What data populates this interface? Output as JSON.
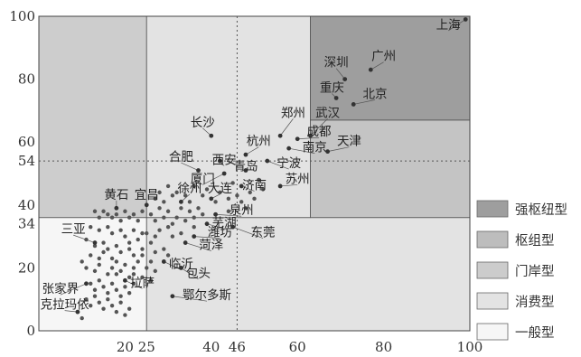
{
  "chart_data": {
    "type": "scatter",
    "title": "",
    "xlabel": "",
    "ylabel": "",
    "xlim": [
      0,
      100
    ],
    "ylim": [
      0,
      100
    ],
    "x_ticks": [
      "20",
      "25",
      "40",
      "46",
      "60",
      "80",
      "100"
    ],
    "x_tick_values": [
      20,
      25,
      40,
      46,
      60,
      80,
      100
    ],
    "y_ticks": [
      "0",
      "20",
      "34",
      "40",
      "54",
      "60",
      "80",
      "100"
    ],
    "y_tick_values": [
      0,
      20,
      34,
      40,
      54,
      60,
      80,
      100
    ],
    "threshold_lines": {
      "x": 46,
      "y": 54
    },
    "regions": [
      {
        "name": "一般型",
        "color": "#f6f6f6",
        "x": [
          0,
          25
        ],
        "y": [
          0,
          36
        ]
      },
      {
        "name": "消费型",
        "color": "#e3e3e3",
        "x": [
          25,
          100
        ],
        "y": [
          0,
          36
        ]
      },
      {
        "name": "门岸型",
        "color": "#cdcdcd",
        "x": [
          0,
          25
        ],
        "y": [
          36,
          100
        ]
      },
      {
        "name": "消费型",
        "color": "#e3e3e3",
        "x": [
          25,
          63
        ],
        "y": [
          36,
          100
        ]
      },
      {
        "name": "枢组型",
        "color": "#c4c4c4",
        "x": [
          63,
          100
        ],
        "y": [
          36,
          67
        ]
      },
      {
        "name": "强枢纽型",
        "color": "#9e9e9e",
        "x": [
          63,
          100
        ],
        "y": [
          67,
          100
        ]
      }
    ],
    "legend": {
      "placement": "right",
      "entries": [
        {
          "label": "强枢纽型",
          "color": "#9e9e9e"
        },
        {
          "label": "枢组型",
          "color": "#bdbdbd"
        },
        {
          "label": "门岸型",
          "color": "#cccccc"
        },
        {
          "label": "消费型",
          "color": "#e3e3e3"
        },
        {
          "label": "一般型",
          "color": "#f6f6f6"
        }
      ]
    },
    "points": [
      {
        "label": "上海",
        "x": 99,
        "y": 99,
        "lx": 95,
        "ly": 96
      },
      {
        "label": "广州",
        "x": 77,
        "y": 83,
        "lx": 80,
        "ly": 86
      },
      {
        "label": "深圳",
        "x": 71,
        "y": 80,
        "lx": 69,
        "ly": 84
      },
      {
        "label": "北京",
        "x": 73,
        "y": 72,
        "lx": 78,
        "ly": 74
      },
      {
        "label": "重庆",
        "x": 69,
        "y": 74,
        "lx": 68,
        "ly": 76
      },
      {
        "label": "郑州",
        "x": 56,
        "y": 62,
        "lx": 59,
        "ly": 68
      },
      {
        "label": "武汉",
        "x": 63,
        "y": 62,
        "lx": 67,
        "ly": 68
      },
      {
        "label": "成都",
        "x": 60,
        "y": 61,
        "lx": 65,
        "ly": 62
      },
      {
        "label": "南京",
        "x": 58,
        "y": 58,
        "lx": 64,
        "ly": 57
      },
      {
        "label": "天津",
        "x": 67,
        "y": 57,
        "lx": 72,
        "ly": 59
      },
      {
        "label": "长沙",
        "x": 40,
        "y": 62,
        "lx": 38,
        "ly": 65
      },
      {
        "label": "杭州",
        "x": 48,
        "y": 56,
        "lx": 51,
        "ly": 59
      },
      {
        "label": "西安",
        "x": 42,
        "y": 54,
        "lx": 43,
        "ly": 53
      },
      {
        "label": "合肥",
        "x": 37,
        "y": 51,
        "lx": 33,
        "ly": 54
      },
      {
        "label": "宁波",
        "x": 53,
        "y": 54,
        "lx": 58,
        "ly": 52
      },
      {
        "label": "青岛",
        "x": 48,
        "y": 51,
        "lx": 48,
        "ly": 51
      },
      {
        "label": "厦门",
        "x": 43,
        "y": 50,
        "lx": 38,
        "ly": 47
      },
      {
        "label": "济南",
        "x": 47,
        "y": 46,
        "lx": 50,
        "ly": 45
      },
      {
        "label": "苏州",
        "x": 56,
        "y": 46,
        "lx": 60,
        "ly": 47
      },
      {
        "label": "徐州",
        "x": 33,
        "y": 41,
        "lx": 35,
        "ly": 44
      },
      {
        "label": "大连",
        "x": 40,
        "y": 42,
        "lx": 42,
        "ly": 44
      },
      {
        "label": "黄石",
        "x": 18,
        "y": 39,
        "lx": 18,
        "ly": 42
      },
      {
        "label": "宜昌",
        "x": 25,
        "y": 40,
        "lx": 25,
        "ly": 42
      },
      {
        "label": "泉州",
        "x": 41,
        "y": 37,
        "lx": 47,
        "ly": 37
      },
      {
        "label": "芜湖",
        "x": 39,
        "y": 34,
        "lx": 43,
        "ly": 33
      },
      {
        "label": "东莞",
        "x": 45,
        "y": 33,
        "lx": 52,
        "ly": 30
      },
      {
        "label": "潍坊",
        "x": 36,
        "y": 30,
        "lx": 42,
        "ly": 30
      },
      {
        "label": "三亚",
        "x": 13,
        "y": 28,
        "lx": 8,
        "ly": 31
      },
      {
        "label": "菏泽",
        "x": 34,
        "y": 28,
        "lx": 40,
        "ly": 26
      },
      {
        "label": "临沂",
        "x": 29,
        "y": 22,
        "lx": 33,
        "ly": 20
      },
      {
        "label": "包头",
        "x": 33,
        "y": 20,
        "lx": 37,
        "ly": 17
      },
      {
        "label": "拉萨",
        "x": 20,
        "y": 16,
        "lx": 24,
        "ly": 14
      },
      {
        "label": "鄂尔多斯",
        "x": 31,
        "y": 11,
        "lx": 39,
        "ly": 10
      },
      {
        "label": "张家界",
        "x": 11,
        "y": 15,
        "lx": 5,
        "ly": 12
      },
      {
        "label": "克拉玛依",
        "x": 9,
        "y": 6,
        "lx": 6,
        "ly": 7
      }
    ],
    "unlabeled_points": [
      [
        13,
        38
      ],
      [
        14,
        36
      ],
      [
        15,
        38
      ],
      [
        16,
        37
      ],
      [
        17,
        36
      ],
      [
        18,
        37
      ],
      [
        19,
        35
      ],
      [
        20,
        38
      ],
      [
        21,
        36
      ],
      [
        22,
        37
      ],
      [
        23,
        35
      ],
      [
        24,
        38
      ],
      [
        26,
        37
      ],
      [
        27,
        35
      ],
      [
        28,
        39
      ],
      [
        29,
        36
      ],
      [
        30,
        38
      ],
      [
        31,
        34
      ],
      [
        32,
        36
      ],
      [
        33,
        39
      ],
      [
        34,
        35
      ],
      [
        35,
        38
      ],
      [
        36,
        36
      ],
      [
        37,
        39
      ],
      [
        38,
        37
      ],
      [
        27,
        42
      ],
      [
        28,
        44
      ],
      [
        29,
        41
      ],
      [
        30,
        46
      ],
      [
        31,
        43
      ],
      [
        32,
        44
      ],
      [
        34,
        43
      ],
      [
        35,
        41
      ],
      [
        36,
        46
      ],
      [
        38,
        43
      ],
      [
        39,
        45
      ],
      [
        41,
        41
      ],
      [
        42,
        44
      ],
      [
        44,
        42
      ],
      [
        45,
        47
      ],
      [
        46,
        43
      ],
      [
        47,
        41
      ],
      [
        49,
        44
      ],
      [
        50,
        42
      ],
      [
        51,
        48
      ],
      [
        52,
        45
      ],
      [
        44,
        38
      ],
      [
        48,
        39
      ],
      [
        36,
        33
      ],
      [
        33,
        31
      ],
      [
        31,
        30
      ],
      [
        30,
        33
      ],
      [
        28,
        32
      ],
      [
        27,
        30
      ],
      [
        26,
        28
      ],
      [
        24,
        31
      ],
      [
        12,
        33
      ],
      [
        14,
        32
      ],
      [
        16,
        33
      ],
      [
        17,
        31
      ],
      [
        19,
        32
      ],
      [
        20,
        30
      ],
      [
        22,
        32
      ],
      [
        23,
        29
      ],
      [
        25,
        31
      ],
      [
        21,
        28
      ],
      [
        24,
        26
      ],
      [
        27,
        25
      ],
      [
        29,
        26
      ],
      [
        30,
        24
      ],
      [
        11,
        29
      ],
      [
        13,
        27
      ],
      [
        15,
        28
      ],
      [
        16,
        26
      ],
      [
        18,
        27
      ],
      [
        19,
        25
      ],
      [
        21,
        26
      ],
      [
        22,
        24
      ],
      [
        24,
        24
      ],
      [
        26,
        22
      ],
      [
        12,
        24
      ],
      [
        14,
        23
      ],
      [
        15,
        25
      ],
      [
        17,
        23
      ],
      [
        18,
        22
      ],
      [
        20,
        21
      ],
      [
        22,
        20
      ],
      [
        23,
        22
      ],
      [
        25,
        20
      ],
      [
        27,
        19
      ],
      [
        10,
        22
      ],
      [
        11,
        20
      ],
      [
        13,
        19
      ],
      [
        14,
        21
      ],
      [
        16,
        18
      ],
      [
        17,
        20
      ],
      [
        18,
        18
      ],
      [
        19,
        19
      ],
      [
        21,
        17
      ],
      [
        22,
        18
      ],
      [
        24,
        17
      ],
      [
        26,
        16
      ],
      [
        12,
        15
      ],
      [
        13,
        13
      ],
      [
        14,
        16
      ],
      [
        15,
        14
      ],
      [
        16,
        12
      ],
      [
        17,
        15
      ],
      [
        18,
        13
      ],
      [
        19,
        11
      ],
      [
        20,
        14
      ],
      [
        21,
        12
      ],
      [
        22,
        15
      ],
      [
        11,
        10
      ],
      [
        12,
        8
      ],
      [
        13,
        11
      ],
      [
        14,
        9
      ],
      [
        15,
        7
      ],
      [
        16,
        10
      ],
      [
        17,
        8
      ],
      [
        18,
        6
      ],
      [
        19,
        9
      ],
      [
        20,
        5
      ],
      [
        21,
        7
      ],
      [
        10,
        4
      ]
    ]
  }
}
